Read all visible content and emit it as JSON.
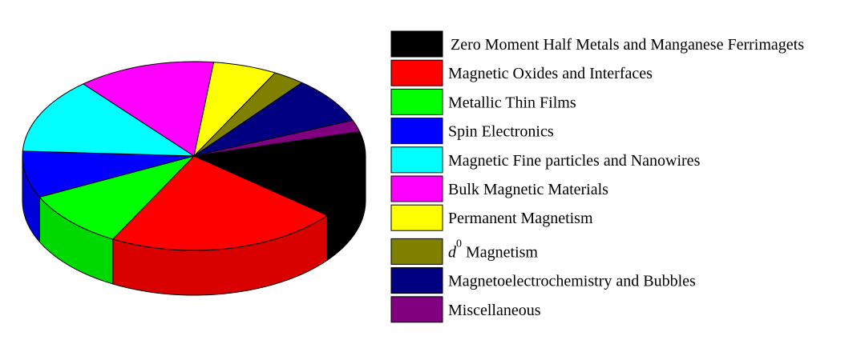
{
  "chart_data": {
    "type": "pie",
    "style": "3d",
    "title": "",
    "legend_position": "right",
    "slices": [
      {
        "label": "Zero Moment Half Metals and Manganese Ferrimagets",
        "value": 15,
        "color": "#000000"
      },
      {
        "label": "Magnetic Oxides and Interfaces",
        "value": 22,
        "color": "#ff0000"
      },
      {
        "label": "Metallic Thin Films",
        "value": 10,
        "color": "#00ff00"
      },
      {
        "label": "Spin Electronics",
        "value": 8,
        "color": "#0000ff"
      },
      {
        "label": "Magnetic Fine particles and Nanowires",
        "value": 13,
        "color": "#00ffff"
      },
      {
        "label": "Bulk Magnetic Materials",
        "value": 13,
        "color": "#ff00ff"
      },
      {
        "label": "Permanent Magnetism",
        "value": 6,
        "color": "#ffff00"
      },
      {
        "label": "Magnetism",
        "label_prefix": "d",
        "label_superscript": "0",
        "value": 3,
        "color": "#808000"
      },
      {
        "label": "Magnetoelectrochemistry and Bubbles",
        "value": 8,
        "color": "#000080"
      },
      {
        "label": "Miscellaneous",
        "value": 2,
        "color": "#800080"
      }
    ]
  }
}
